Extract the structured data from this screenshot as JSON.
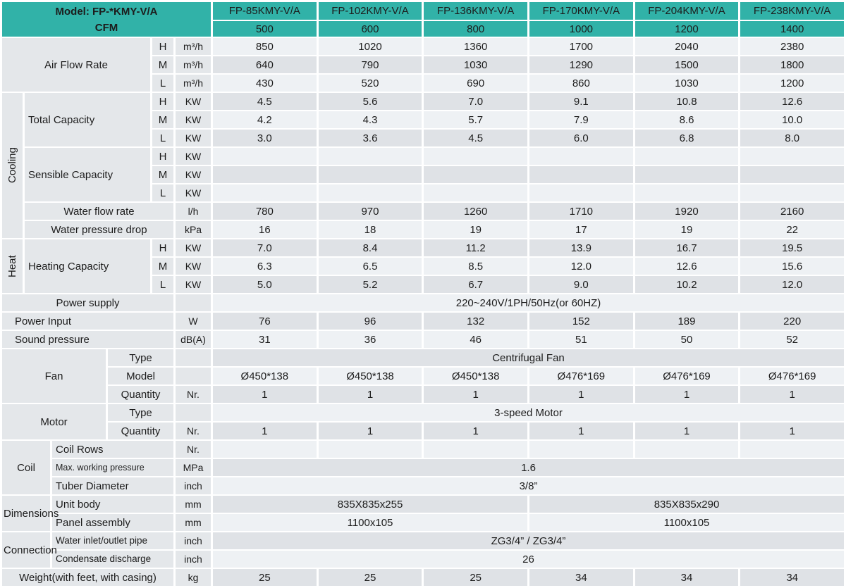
{
  "palette": {
    "teal": "#31b2a8",
    "label_bg": "#e4e7ea",
    "row_light": "#eef1f4",
    "row_dark": "#dfe2e6"
  },
  "speeds": [
    "H",
    "M",
    "L"
  ],
  "header": {
    "model_label": "Model: FP-*KMY-V/A",
    "cfm_label": "CFM",
    "models": [
      "FP-85KMY-V/A",
      "FP-102KMY-V/A",
      "FP-136KMY-V/A",
      "FP-170KMY-V/A",
      "FP-204KMY-V/A",
      "FP-238KMY-V/A"
    ],
    "cfm": [
      "500",
      "600",
      "800",
      "1000",
      "1200",
      "1400"
    ]
  },
  "airflow": {
    "label": "Air Flow Rate",
    "unit": "m³/h",
    "H": [
      "850",
      "1020",
      "1360",
      "1700",
      "2040",
      "2380"
    ],
    "M": [
      "640",
      "790",
      "1030",
      "1290",
      "1500",
      "1800"
    ],
    "L": [
      "430",
      "520",
      "690",
      "860",
      "1030",
      "1200"
    ]
  },
  "cooling": {
    "label": "Cooling",
    "total_capacity": {
      "label": "Total Capacity",
      "unit": "KW",
      "H": [
        "4.5",
        "5.6",
        "7.0",
        "9.1",
        "10.8",
        "12.6"
      ],
      "M": [
        "4.2",
        "4.3",
        "5.7",
        "7.9",
        "8.6",
        "10.0"
      ],
      "L": [
        "3.0",
        "3.6",
        "4.5",
        "6.0",
        "6.8",
        "8.0"
      ]
    },
    "sensible_capacity": {
      "label": "Sensible Capacity",
      "unit": "KW"
    },
    "water_flow_rate": {
      "label": "Water flow rate",
      "unit": "l/h",
      "values": [
        "780",
        "970",
        "1260",
        "1710",
        "1920",
        "2160"
      ]
    },
    "water_pressure_drop": {
      "label": "Water pressure drop",
      "unit": "kPa",
      "values": [
        "16",
        "18",
        "19",
        "17",
        "19",
        "22"
      ]
    }
  },
  "heat": {
    "label": "Heat",
    "heating_capacity": {
      "label": "Heating Capacity",
      "unit": "KW",
      "H": [
        "7.0",
        "8.4",
        "11.2",
        "13.9",
        "16.7",
        "19.5"
      ],
      "M": [
        "6.3",
        "6.5",
        "8.5",
        "12.0",
        "12.6",
        "15.6"
      ],
      "L": [
        "5.0",
        "5.2",
        "6.7",
        "9.0",
        "10.2",
        "12.0"
      ]
    }
  },
  "power_supply": {
    "label": "Power supply",
    "value": "220~240V/1PH/50Hz(or 60HZ)"
  },
  "power_input": {
    "label": "Power Input",
    "unit": "W",
    "values": [
      "76",
      "96",
      "132",
      "152",
      "189",
      "220"
    ]
  },
  "sound_pressure": {
    "label": "Sound pressure",
    "unit": "dB(A)",
    "values": [
      "31",
      "36",
      "46",
      "51",
      "50",
      "52"
    ]
  },
  "fan": {
    "label": "Fan",
    "type_label": "Type",
    "type_value": "Centrifugal Fan",
    "model_label": "Model",
    "models": [
      "Ø450*138",
      "Ø450*138",
      "Ø450*138",
      "Ø476*169",
      "Ø476*169",
      "Ø476*169"
    ],
    "quantity_label": "Quantity",
    "quantity_unit": "Nr.",
    "quantities": [
      "1",
      "1",
      "1",
      "1",
      "1",
      "1"
    ]
  },
  "motor": {
    "label": "Motor",
    "type_label": "Type",
    "type_value": "3-speed Motor",
    "quantity_label": "Quantity",
    "quantity_unit": "Nr.",
    "quantities": [
      "1",
      "1",
      "1",
      "1",
      "1",
      "1"
    ]
  },
  "coil": {
    "label": "Coil",
    "rows_label": "Coil Rows",
    "rows_unit": "Nr.",
    "max_pressure_label": "Max. working pressure",
    "max_pressure_unit": "MPa",
    "max_pressure_value": "1.6",
    "tube_label": "Tuber Diameter",
    "tube_unit": "inch",
    "tube_value": "3/8”"
  },
  "dimensions": {
    "label": "Dimensions",
    "unit": "mm",
    "unit_body_label": "Unit body",
    "unit_body_values": [
      "835X835x255",
      "835X835x290"
    ],
    "panel_label": "Panel assembly",
    "panel_values": [
      "1100x105",
      "1100x105"
    ]
  },
  "connection": {
    "label": "Connection",
    "inlet_label": "Water inlet/outlet pipe",
    "inlet_unit": "inch",
    "inlet_value": "ZG3/4” / ZG3/4”",
    "condensate_label": "Condensate discharge",
    "condensate_unit": "inch",
    "condensate_value": "26"
  },
  "weight": {
    "label": "Weight(with feet, with casing)",
    "unit": "kg",
    "values": [
      "25",
      "25",
      "25",
      "34",
      "34",
      "34"
    ]
  }
}
